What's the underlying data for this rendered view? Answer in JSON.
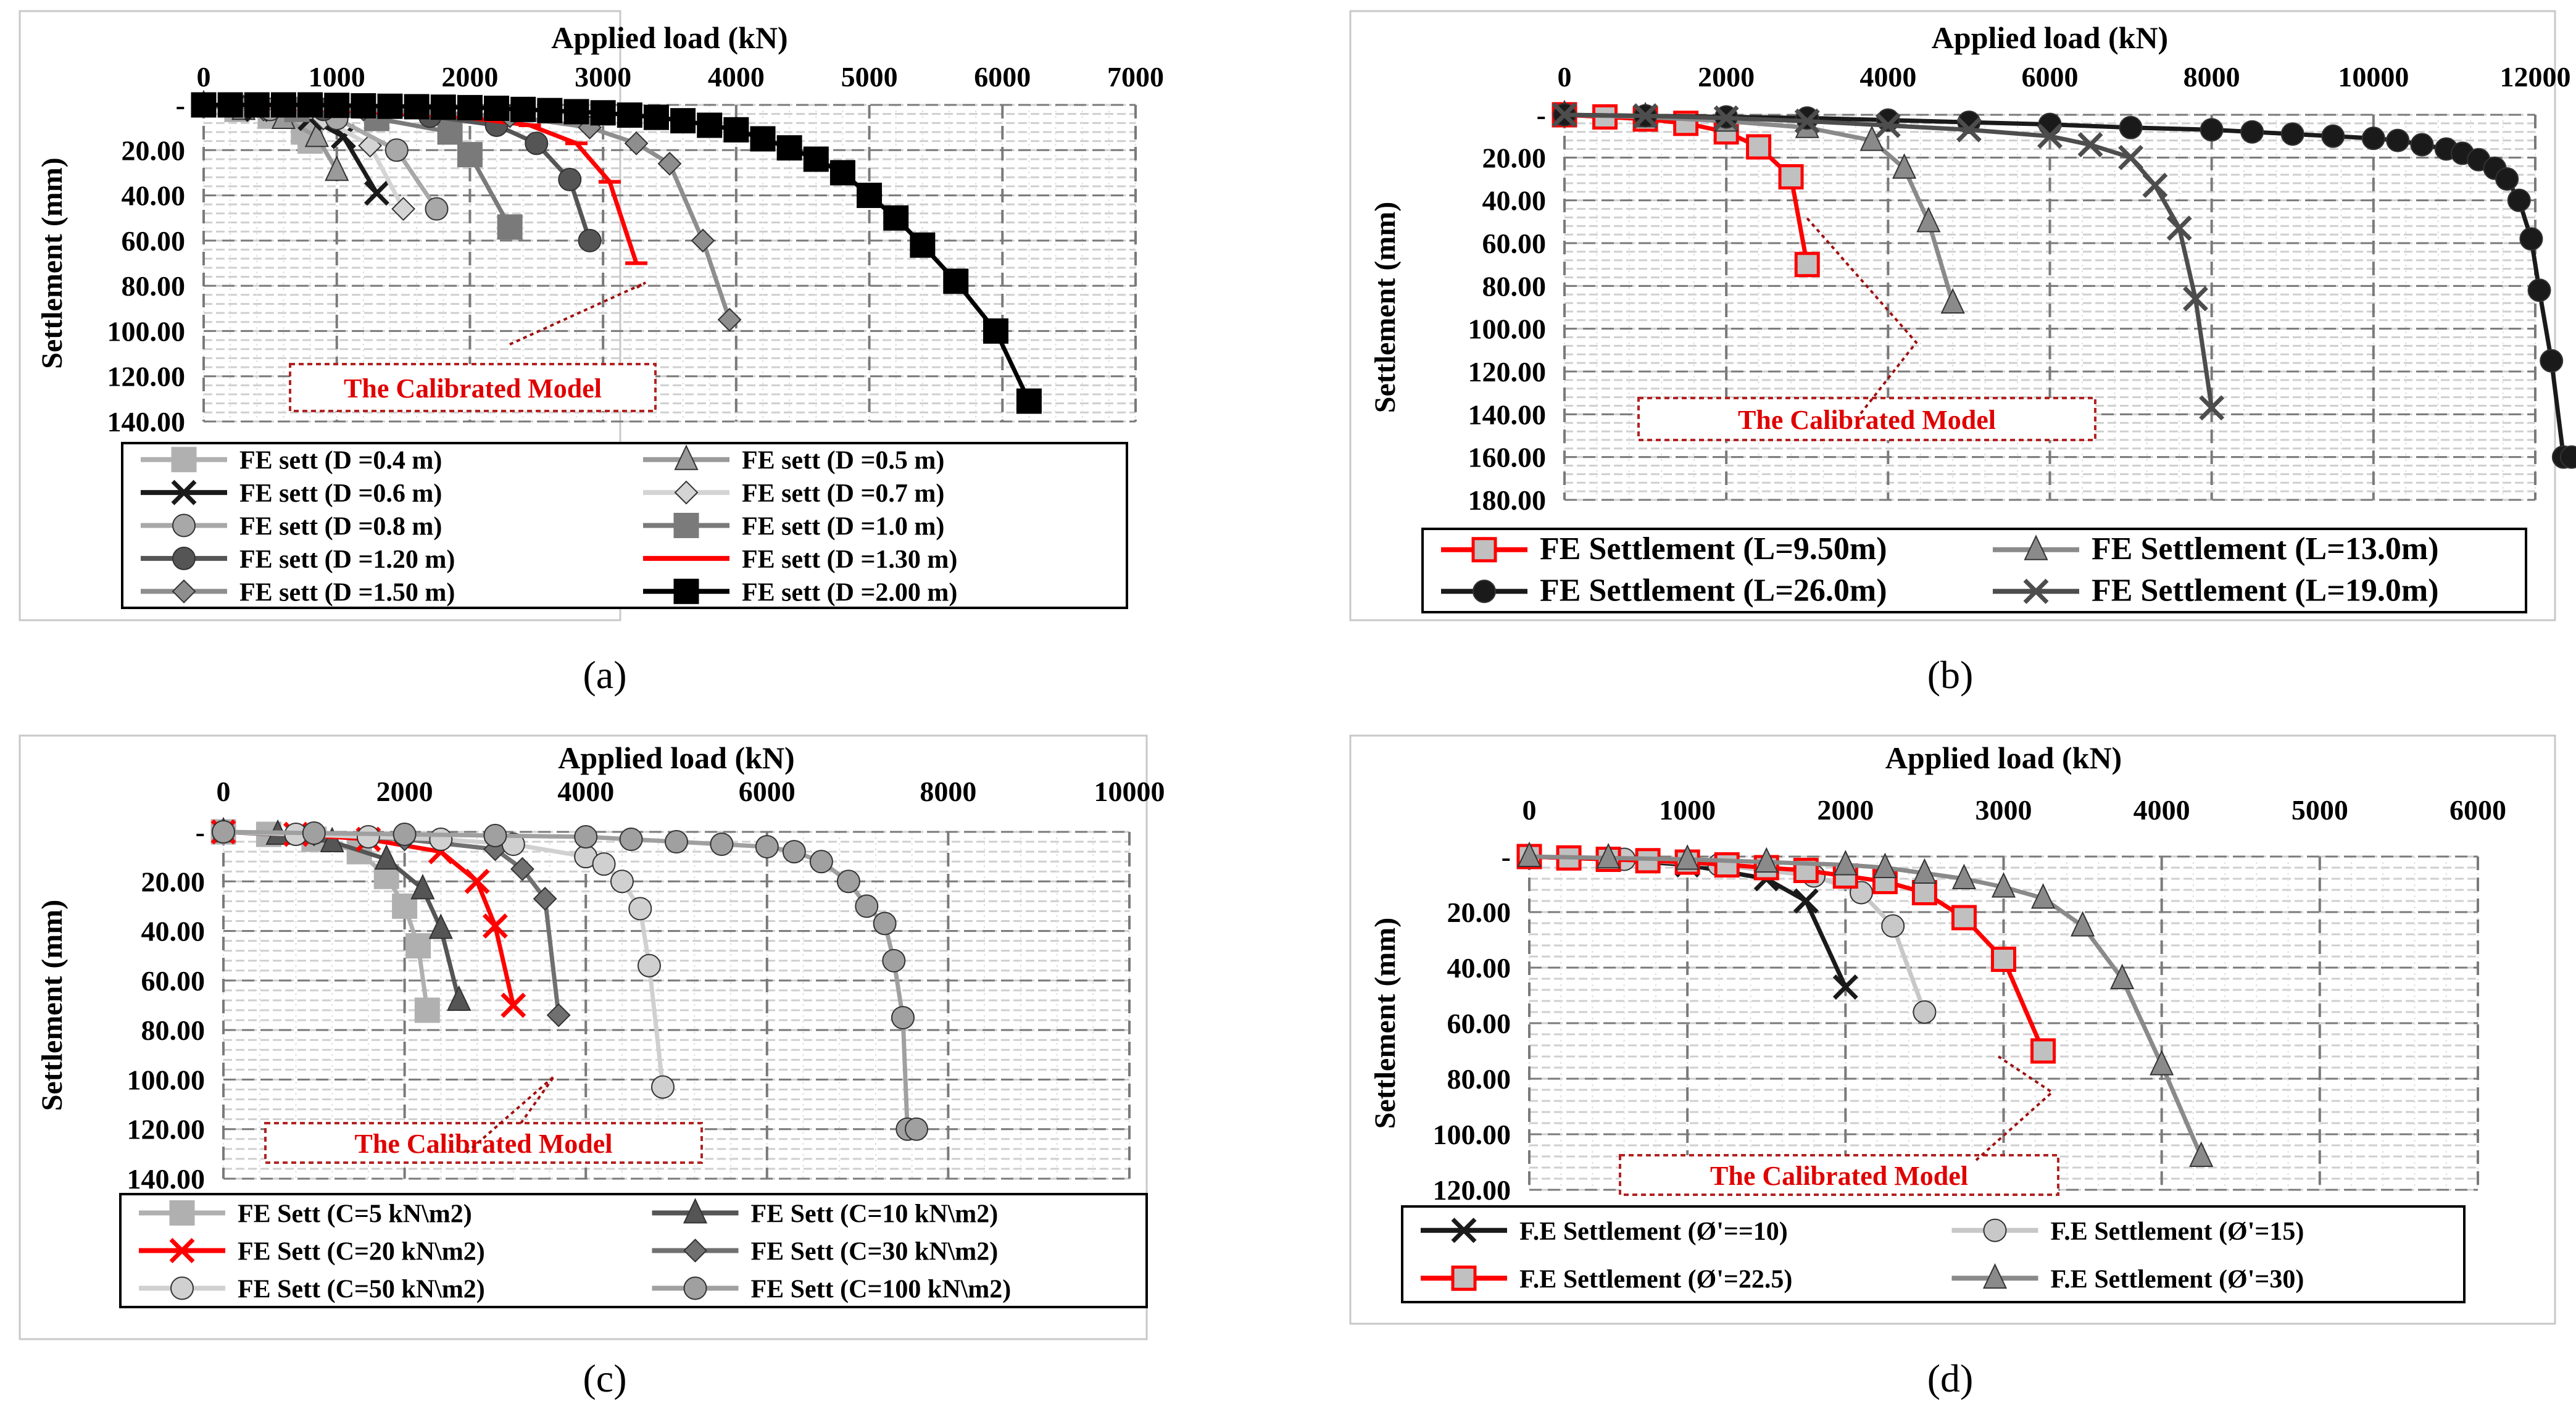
{
  "figure_panels": [
    {
      "id": "a",
      "caption": "(a)",
      "callout": "The Calibrated Model"
    },
    {
      "id": "b",
      "caption": "(b)",
      "callout": "The Calibrated Model"
    },
    {
      "id": "c",
      "caption": "(c)",
      "callout": "The Calibrated Model"
    },
    {
      "id": "d",
      "caption": "(d)",
      "callout": "The Calibrated Model"
    }
  ],
  "chart_data": [
    {
      "panel": "a",
      "type": "line",
      "xlabel": "Applied load (kN)",
      "ylabel": "Settlement (mm)",
      "xlim": [
        0,
        7000
      ],
      "xstep": 1000,
      "ylim": [
        0,
        140
      ],
      "ystep": 20,
      "x_tick_labels": [
        "0",
        "1000",
        "2000",
        "3000",
        "4000",
        "5000",
        "6000",
        "7000"
      ],
      "y_tick_labels": [
        "-",
        "20.00",
        "40.00",
        "60.00",
        "80.00",
        "100.00",
        "120.00",
        "140.00"
      ],
      "legend_columns": 2,
      "series": [
        {
          "name": "FE sett (D =0.4 m)",
          "color": "#b0b0b0",
          "width": 5,
          "marker": "square",
          "x": [
            0,
            250,
            500,
            750,
            800
          ],
          "y": [
            0,
            2,
            5,
            12,
            16
          ]
        },
        {
          "name": "FE sett (D =0.5 m)",
          "color": "#9a9a9a",
          "width": 5,
          "marker": "triangle",
          "x": [
            0,
            300,
            600,
            850,
            1000
          ],
          "y": [
            0,
            2,
            6,
            14,
            29
          ]
        },
        {
          "name": "FE sett (D =0.6 m)",
          "color": "#1a1a1a",
          "width": 5,
          "marker": "x",
          "x": [
            0,
            400,
            800,
            1050,
            1300
          ],
          "y": [
            0,
            2,
            6,
            14,
            39
          ]
        },
        {
          "name": "FE sett (D =0.7 m)",
          "color": "#d4d4d4",
          "width": 5,
          "marker": "diamond",
          "x": [
            0,
            450,
            900,
            1250,
            1500
          ],
          "y": [
            0,
            2,
            6,
            18,
            46
          ]
        },
        {
          "name": "FE sett (D =0.8 m)",
          "color": "#a8a8a8",
          "width": 5,
          "marker": "circle",
          "x": [
            0,
            500,
            1000,
            1450,
            1750
          ],
          "y": [
            0,
            2,
            6,
            20,
            46
          ]
        },
        {
          "name": "FE sett (D =1.0 m)",
          "color": "#7a7a7a",
          "width": 5,
          "marker": "square",
          "x": [
            0,
            700,
            1300,
            1850,
            2000,
            2300
          ],
          "y": [
            0,
            2,
            6,
            12,
            22,
            54
          ]
        },
        {
          "name": "FE sett (D =1.20 m)",
          "color": "#555555",
          "width": 5,
          "marker": "circle",
          "x": [
            0,
            900,
            1700,
            2200,
            2500,
            2750,
            2900
          ],
          "y": [
            0,
            2,
            5,
            9,
            17,
            33,
            60
          ]
        },
        {
          "name": "FE sett (D =1.30 m)",
          "color": "#ff0000",
          "width": 5,
          "marker": "dash",
          "x": [
            0,
            1000,
            1900,
            2450,
            2800,
            3050,
            3250
          ],
          "y": [
            0,
            2,
            5,
            9,
            17,
            34,
            70
          ]
        },
        {
          "name": "FE sett (D =1.50 m)",
          "color": "#8e8e8e",
          "width": 5,
          "marker": "diamond",
          "x": [
            0,
            1200,
            2300,
            2900,
            3250,
            3500,
            3750,
            3950
          ],
          "y": [
            0,
            2,
            5,
            10,
            17,
            26,
            60,
            95
          ]
        },
        {
          "name": "FE sett (D =2.00 m)",
          "color": "#000000",
          "width": 5,
          "marker": "square",
          "x": [
            0,
            200,
            400,
            600,
            800,
            1000,
            1200,
            1400,
            1600,
            1800,
            2000,
            2200,
            2400,
            2600,
            2800,
            3000,
            3200,
            3400,
            3600,
            3800,
            4000,
            4200,
            4400,
            4600,
            4800,
            5000,
            5200,
            5400,
            5650,
            5950,
            6200
          ],
          "y": [
            0,
            0,
            0,
            0,
            0,
            0.2,
            0.4,
            0.6,
            0.8,
            1,
            1.2,
            1.5,
            2,
            2.5,
            3,
            3.5,
            4.5,
            5.5,
            7,
            9,
            11,
            15,
            19,
            24,
            30,
            40,
            50,
            62,
            78,
            100,
            131
          ]
        }
      ]
    },
    {
      "panel": "b",
      "type": "line",
      "xlabel": "Applied load (kN)",
      "ylabel": "Settlement (mm)",
      "xlim": [
        0,
        12000
      ],
      "xstep": 2000,
      "ylim": [
        0,
        180
      ],
      "ystep": 20,
      "x_tick_labels": [
        "0",
        "2000",
        "4000",
        "6000",
        "8000",
        "10000",
        "12000"
      ],
      "y_tick_labels": [
        "-",
        "20.00",
        "40.00",
        "60.00",
        "80.00",
        "100.00",
        "120.00",
        "140.00",
        "160.00",
        "180.00"
      ],
      "legend_columns": 2,
      "series": [
        {
          "name": "FE Settlement  (L=9.50m)",
          "color": "#ff0000",
          "width": 5,
          "marker": "square",
          "x": [
            0,
            500,
            1000,
            1500,
            2000,
            2400,
            2800,
            3000
          ],
          "y": [
            0,
            1,
            2,
            4,
            8,
            15,
            29,
            70
          ]
        },
        {
          "name": "FE Settlement  (L=13.0m)",
          "color": "#8a8a8a",
          "width": 5,
          "marker": "triangle",
          "x": [
            0,
            1000,
            2000,
            3000,
            3800,
            4200,
            4500,
            4800
          ],
          "y": [
            0,
            1,
            3,
            6,
            12,
            25,
            50,
            88
          ]
        },
        {
          "name": "FE Settlement  (L=26.0m)",
          "color": "#1a1a1a",
          "width": 5,
          "marker": "circle",
          "x": [
            0,
            1000,
            2000,
            3000,
            4000,
            5000,
            6000,
            7000,
            8000,
            8500,
            9000,
            9500,
            10000,
            10300,
            10600,
            10900,
            11100,
            11300,
            11500,
            11650,
            11800,
            11950,
            12050,
            12200,
            12350,
            12450
          ],
          "y": [
            0,
            0.5,
            1,
            1.5,
            2.5,
            3.5,
            4.5,
            6,
            7,
            8,
            9,
            10,
            11,
            12,
            14,
            16,
            18,
            21,
            25,
            30,
            40,
            58,
            82,
            115,
            160,
            160
          ]
        },
        {
          "name": "FE Settlement  (L=19.0m)",
          "color": "#4d4d4d",
          "width": 5,
          "marker": "x",
          "x": [
            0,
            1000,
            2000,
            3000,
            4000,
            5000,
            6000,
            6500,
            7000,
            7300,
            7600,
            7800,
            8000
          ],
          "y": [
            0,
            0.5,
            1.5,
            3,
            5,
            7,
            10,
            14,
            20,
            33,
            53,
            86,
            137
          ]
        }
      ]
    },
    {
      "panel": "c",
      "type": "line",
      "xlabel": "Applied load (kN)",
      "ylabel": "Settlement (mm)",
      "xlim": [
        0,
        10000
      ],
      "xstep": 2000,
      "ylim": [
        0,
        140
      ],
      "ystep": 20,
      "x_tick_labels": [
        "0",
        "2000",
        "4000",
        "6000",
        "8000",
        "10000"
      ],
      "y_tick_labels": [
        "-",
        "20.00",
        "40.00",
        "60.00",
        "80.00",
        "100.00",
        "120.00",
        "140.00"
      ],
      "legend_columns": 2,
      "series": [
        {
          "name": "FE Sett (C=5 kN\\m2)",
          "color": "#b0b0b0",
          "width": 5,
          "marker": "square",
          "x": [
            0,
            500,
            1000,
            1500,
            1800,
            2000,
            2150,
            2250
          ],
          "y": [
            0,
            1,
            3,
            8,
            18,
            30,
            46,
            72
          ]
        },
        {
          "name": "FE Sett (C=10 kN\\m2)",
          "color": "#555555",
          "width": 5,
          "marker": "triangle",
          "x": [
            0,
            600,
            1200,
            1800,
            2200,
            2400,
            2600
          ],
          "y": [
            0,
            1,
            4,
            11,
            23,
            39,
            68
          ]
        },
        {
          "name": "FE Sett (C=20 kN\\m2)",
          "color": "#ff0000",
          "width": 5,
          "marker": "x",
          "x": [
            0,
            800,
            1600,
            2400,
            2800,
            3000,
            3200
          ],
          "y": [
            0,
            1,
            3,
            8,
            20,
            38,
            70
          ]
        },
        {
          "name": "FE Sett (C=30 kN\\m2)",
          "color": "#707070",
          "width": 5,
          "marker": "diamond",
          "x": [
            0,
            1000,
            2000,
            3000,
            3300,
            3550,
            3700
          ],
          "y": [
            0,
            1,
            3,
            7,
            15,
            27,
            74
          ]
        },
        {
          "name": "FE Sett (C=50 kN\\m2)",
          "color": "#d0d0d0",
          "width": 5,
          "marker": "circle",
          "x": [
            0,
            800,
            1600,
            2400,
            3200,
            4000,
            4200,
            4400,
            4600,
            4700,
            4850
          ],
          "y": [
            0,
            1,
            2,
            3,
            5,
            10,
            13,
            20,
            31,
            54,
            103
          ]
        },
        {
          "name": "FE Sett (C=100 kN\\m2)",
          "color": "#a0a0a0",
          "width": 5,
          "marker": "circle",
          "x": [
            0,
            1000,
            2000,
            3000,
            4000,
            4500,
            5000,
            5500,
            6000,
            6300,
            6600,
            6900,
            7100,
            7300,
            7400,
            7500,
            7550,
            7650
          ],
          "y": [
            0,
            0.5,
            1,
            1.5,
            2,
            3,
            4,
            5,
            6,
            8,
            12,
            20,
            30,
            37,
            52,
            75,
            120,
            120
          ]
        }
      ]
    },
    {
      "panel": "d",
      "type": "line",
      "xlabel": "Applied load (kN)",
      "ylabel": "Settlement (mm)",
      "xlim": [
        0,
        6000
      ],
      "xstep": 1000,
      "ylim": [
        0,
        120
      ],
      "ystep": 20,
      "x_tick_labels": [
        "0",
        "1000",
        "2000",
        "3000",
        "4000",
        "5000",
        "6000"
      ],
      "y_tick_labels": [
        "-",
        "20.00",
        "40.00",
        "60.00",
        "80.00",
        "100.00",
        "120.00"
      ],
      "legend_columns": 2,
      "series": [
        {
          "name": "F.E Settlement (Ø'==10)",
          "color": "#1a1a1a",
          "width": 5,
          "marker": "x",
          "x": [
            0,
            500,
            1000,
            1500,
            1750,
            2000
          ],
          "y": [
            0,
            1,
            3,
            8,
            16,
            47
          ]
        },
        {
          "name": "F.E Settlement (Ø'=15)",
          "color": "#c8c8c8",
          "width": 5,
          "marker": "circle",
          "x": [
            0,
            600,
            1200,
            1800,
            2100,
            2300,
            2500
          ],
          "y": [
            0,
            1,
            3,
            7,
            13,
            25,
            56
          ]
        },
        {
          "name": "F.E Settlement (Ø'=22.5)",
          "color": "#ff0000",
          "width": 5,
          "marker": "square",
          "x": [
            0,
            250,
            500,
            750,
            1000,
            1250,
            1500,
            1750,
            2000,
            2250,
            2500,
            2750,
            3000,
            3250
          ],
          "y": [
            0,
            0.5,
            1,
            1.5,
            2,
            3,
            4,
            5,
            7,
            9,
            13,
            22,
            37,
            70
          ]
        },
        {
          "name": "F.E Settlement (Ø'=30)",
          "color": "#8a8a8a",
          "width": 5,
          "marker": "triangle",
          "x": [
            0,
            500,
            1000,
            1500,
            2000,
            2250,
            2500,
            2750,
            3000,
            3250,
            3500,
            3750,
            4000,
            4250
          ],
          "y": [
            0,
            0.5,
            1,
            2,
            3,
            4,
            6,
            8,
            11,
            15,
            25,
            44,
            75,
            108
          ]
        }
      ]
    }
  ]
}
